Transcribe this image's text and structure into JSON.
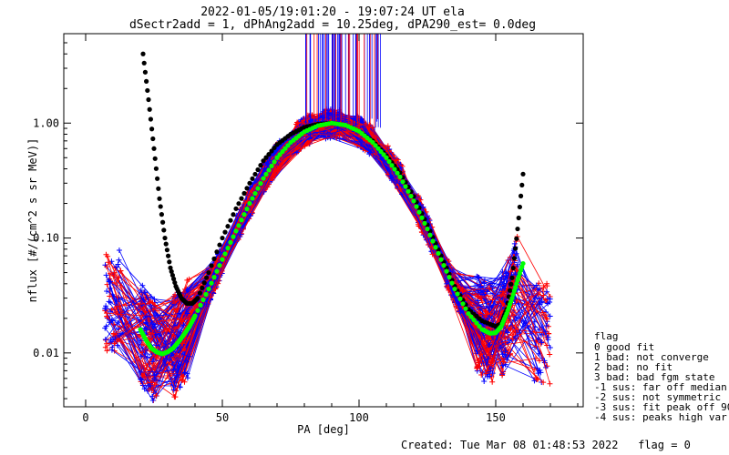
{
  "chart_data": {
    "type": "line",
    "title_line1": "2022-01-05/19:01:20 - 19:07:24 UT ela",
    "title_line2": "dSectr2add = 1, dPhAng2add = 10.25deg, dPA290_est=   0.0deg",
    "xlabel": "PA [deg]",
    "ylabel": "nflux [#/(cm^2 s sr MeV)]",
    "xlim": [
      -8,
      182
    ],
    "ylim": [
      0.0034,
      6.0
    ],
    "yscale": "log",
    "x_ticks": [
      0,
      50,
      100,
      150
    ],
    "x_tick_labels": [
      "0",
      "50",
      "100",
      "150"
    ],
    "y_ticks": [
      0.01,
      0.1,
      1.0
    ],
    "y_tick_labels": [
      "0.01",
      "0.10",
      "1.00"
    ],
    "series": [
      {
        "color": "#000000",
        "x": [
          21,
          23,
          25,
          27,
          29,
          31,
          33,
          35,
          37,
          39,
          41,
          45,
          50,
          55,
          60,
          65,
          70,
          75,
          80,
          85,
          90,
          95,
          100,
          105,
          110,
          115,
          120,
          125,
          130,
          135,
          140,
          145,
          150,
          152,
          154,
          156,
          158,
          160
        ],
        "y": [
          4.0,
          1.6,
          0.6,
          0.22,
          0.1,
          0.055,
          0.038,
          0.03,
          0.027,
          0.027,
          0.03,
          0.05,
          0.1,
          0.18,
          0.3,
          0.47,
          0.65,
          0.8,
          0.92,
          0.98,
          1.0,
          0.96,
          0.85,
          0.7,
          0.52,
          0.37,
          0.23,
          0.13,
          0.07,
          0.038,
          0.024,
          0.019,
          0.017,
          0.018,
          0.024,
          0.045,
          0.12,
          0.36
        ]
      },
      {
        "color": "#00ff00",
        "x": [
          20,
          22,
          24,
          26,
          28,
          30,
          32,
          34,
          36,
          38,
          40,
          45,
          50,
          55,
          60,
          65,
          70,
          75,
          80,
          85,
          90,
          95,
          100,
          105,
          110,
          115,
          120,
          125,
          130,
          135,
          140,
          145,
          148,
          150,
          152,
          154,
          156,
          158,
          160
        ],
        "y": [
          0.016,
          0.013,
          0.011,
          0.0102,
          0.0098,
          0.0102,
          0.011,
          0.0125,
          0.0145,
          0.017,
          0.021,
          0.036,
          0.065,
          0.115,
          0.2,
          0.33,
          0.5,
          0.68,
          0.84,
          0.95,
          1.0,
          0.96,
          0.85,
          0.68,
          0.5,
          0.34,
          0.21,
          0.12,
          0.065,
          0.036,
          0.022,
          0.016,
          0.0148,
          0.015,
          0.017,
          0.022,
          0.03,
          0.043,
          0.06
        ]
      }
    ],
    "spread_lines_colors": [
      "#ff0000",
      "#0000ff"
    ],
    "legend": {
      "title": "flag",
      "items": [
        " 0 good fit",
        " 1 bad: not converge",
        " 2 bad: no fit",
        " 3 bad: bad fgm state",
        "-1 sus: far off median",
        "-2 sus: not symmetric",
        "-3 sus: fit peak off 90",
        "-4 sus: peaks high var"
      ]
    },
    "footer": "Created: Tue Mar 08 01:48:53 2022   flag = 0"
  }
}
